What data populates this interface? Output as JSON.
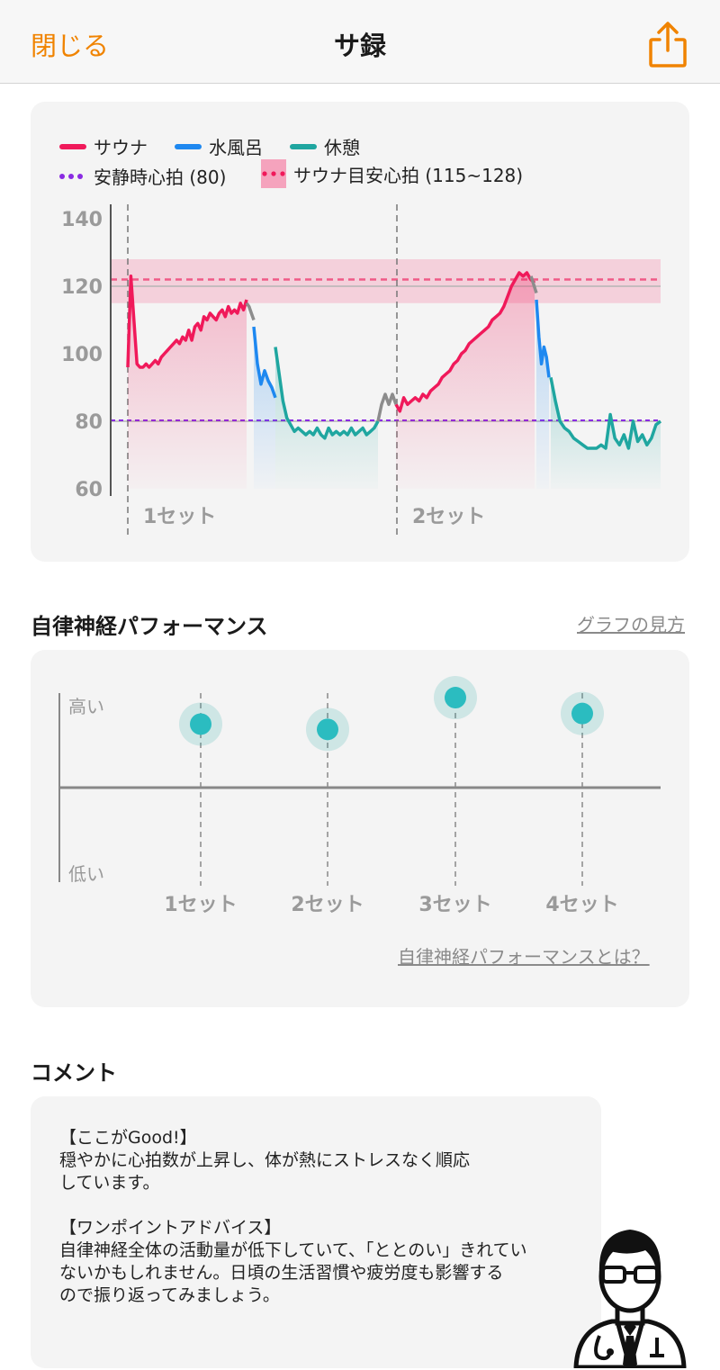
{
  "nav": {
    "close_label": "閉じる",
    "title": "サ録"
  },
  "legend": {
    "sauna": "サウナ",
    "water": "水風呂",
    "rest": "休憩",
    "resting_hr": "安静時心拍 (80)",
    "target_hr": "サウナ目安心拍 (115~128)"
  },
  "colors": {
    "accent": "#f08300",
    "sauna": "#f0195a",
    "water": "#1e88f0",
    "rest": "#1fa6a0",
    "resting": "#8a2be2",
    "target": "#f05a87"
  },
  "chart_data": [
    {
      "type": "line",
      "y_ticks": [
        "140",
        "120",
        "100",
        "80",
        "60"
      ],
      "ylim": [
        60,
        140
      ],
      "resting_hr": 80,
      "target_band": [
        115,
        128
      ],
      "sets": [
        "1セット",
        "2セット"
      ],
      "series": [
        {
          "name": "サウナ",
          "values": [
            96,
            123,
            110,
            97,
            96,
            96,
            97,
            96,
            97,
            98,
            97,
            99,
            100,
            101,
            102,
            103,
            104,
            103,
            105,
            104,
            107,
            104,
            108,
            109,
            107,
            111,
            110,
            112,
            111,
            110,
            112,
            113,
            111,
            114,
            112,
            113,
            112,
            115,
            113,
            116
          ]
        },
        {
          "name": "水風呂",
          "values": [
            108,
            97,
            91,
            95,
            92,
            90,
            87
          ]
        },
        {
          "name": "休憩",
          "values": [
            102,
            94,
            86,
            81,
            79,
            77,
            78,
            77,
            76,
            77,
            76,
            78,
            76,
            75,
            78,
            76,
            77,
            76,
            77,
            76,
            78,
            76,
            77,
            78,
            76,
            77,
            78,
            80
          ]
        },
        {
          "name": "サウナ",
          "values": [
            85,
            83,
            87,
            85,
            86,
            87,
            86,
            88,
            87,
            89,
            90,
            91,
            93,
            94,
            95,
            97,
            98,
            100,
            101,
            103,
            104,
            105,
            106,
            107,
            108,
            110,
            111,
            112,
            114,
            117,
            120,
            122,
            124,
            123,
            124,
            122,
            121
          ]
        },
        {
          "name": "水風呂",
          "values": [
            116,
            105,
            97,
            102,
            99,
            93
          ]
        },
        {
          "name": "休憩",
          "values": [
            93,
            86,
            80,
            78,
            77,
            75,
            74,
            73,
            72,
            72,
            72,
            73,
            72,
            82,
            75,
            73,
            76,
            72,
            80,
            74,
            76,
            73,
            75,
            79,
            80
          ]
        }
      ]
    },
    {
      "type": "scatter",
      "y_top_label": "高い",
      "y_bottom_label": "低い",
      "categories": [
        "1セット",
        "2セット",
        "3セット",
        "4セット"
      ],
      "values": [
        0.6,
        0.55,
        0.85,
        0.7
      ]
    }
  ],
  "performance": {
    "title": "自律神経パフォーマンス",
    "help_link": "グラフの見方",
    "about_link": "自律神経パフォーマンスとは？"
  },
  "comment": {
    "title": "コメント",
    "text": "【ここがGood!】\n穏やかに心拍数が上昇し、体が熱にストレスなく順応\nしています。\n\n【ワンポイントアドバイス】\n自律神経全体の活動量が低下していて、「ととのい」きれてい\nないかもしれません。日頃の生活習慣や疲労度も影響する\nので振り返ってみましょう。"
  }
}
